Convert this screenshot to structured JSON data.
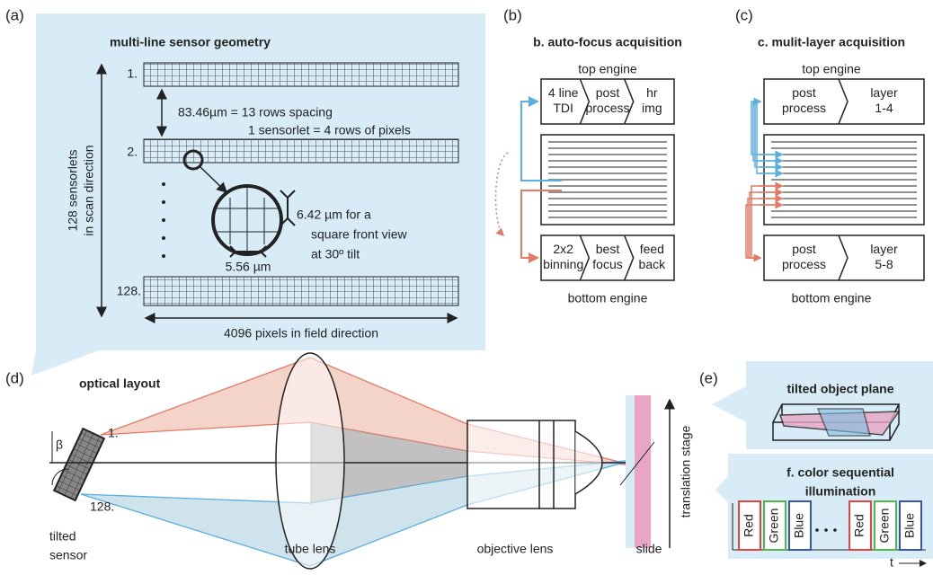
{
  "panels": {
    "a": {
      "label": "(a)",
      "title": "multi-line sensor geometry",
      "rows": [
        "1.",
        "2.",
        "128."
      ],
      "side_label": [
        "128 sensorlets",
        "in scan direction"
      ],
      "spacing": "83.46µm = 13 rows spacing",
      "sensorlet": "1 sensorlet = 4 rows of pixels",
      "pixel_v": [
        "6.42 µm for a",
        "square front view",
        "at 30º tilt"
      ],
      "pixel_h": "5.56 µm",
      "field": "4096 pixels in field direction"
    },
    "b": {
      "label": "(b)",
      "title": "b. auto-focus acquisition",
      "top": "top engine",
      "top_boxes": [
        [
          "4 line",
          "TDI"
        ],
        [
          "post",
          "process"
        ],
        [
          "hr",
          "img"
        ]
      ],
      "bottom_boxes": [
        [
          "2x2",
          "binning"
        ],
        [
          "best",
          "focus"
        ],
        [
          "feed",
          "back"
        ]
      ],
      "bottom": "bottom engine"
    },
    "c": {
      "label": "(c)",
      "title": "c. mulit-layer acquisition",
      "top": "top engine",
      "top_boxes": [
        [
          "post",
          "process"
        ],
        [
          "layer",
          "1-4"
        ]
      ],
      "bottom_boxes": [
        [
          "post",
          "process"
        ],
        [
          "layer",
          "5-8"
        ]
      ],
      "bottom": "bottom engine"
    },
    "d": {
      "label": "(d)",
      "title": "optical layout",
      "beta": "β",
      "row_first": "1.",
      "row_last": "128.",
      "sensor": [
        "tilted",
        "sensor"
      ],
      "tube": "tube lens",
      "objective": "objective lens",
      "slide": "slide",
      "stage": "translation stage"
    },
    "e": {
      "label": "(e)",
      "title": "tilted object plane",
      "f_title": [
        "f. color sequential",
        "illumination"
      ],
      "colors": [
        "Red",
        "Green",
        "Blue",
        "Red",
        "Green",
        "Blue"
      ],
      "t": "t"
    }
  }
}
